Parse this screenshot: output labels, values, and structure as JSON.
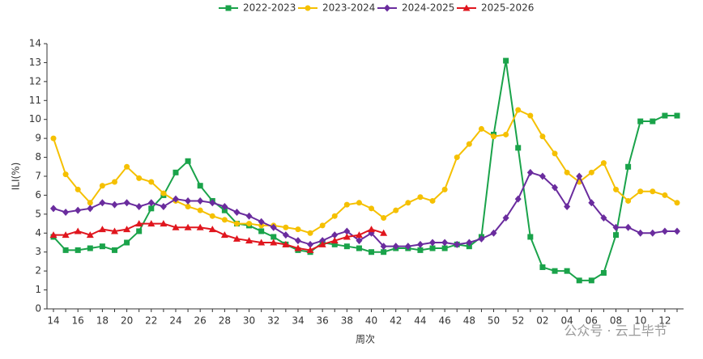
{
  "chart_data": {
    "type": "line",
    "x_label": "周次",
    "y_label": "ILI(%)",
    "categories": [
      "14",
      null,
      "16",
      null,
      "18",
      null,
      "20",
      null,
      "22",
      null,
      "24",
      null,
      "26",
      null,
      "28",
      null,
      "30",
      null,
      "32",
      null,
      "34",
      null,
      "36",
      null,
      "38",
      null,
      "40",
      null,
      "42",
      null,
      "44",
      null,
      "46",
      null,
      "48",
      null,
      "50",
      null,
      "52",
      null,
      "02",
      null,
      "04",
      null,
      "06",
      null,
      "08",
      null,
      "10",
      null,
      "12",
      null
    ],
    "ylim": [
      0,
      14
    ],
    "yticks": [
      0,
      1,
      2,
      3,
      4,
      5,
      6,
      7,
      8,
      9,
      10,
      11,
      12,
      13,
      14
    ],
    "legend": "top",
    "series": [
      {
        "name": "2022-2023",
        "color": "#1aa34a",
        "marker": "square",
        "values": [
          3.8,
          3.1,
          3.1,
          3.2,
          3.3,
          3.1,
          3.5,
          4.1,
          5.3,
          6.0,
          7.2,
          7.8,
          6.5,
          5.7,
          5.2,
          4.5,
          4.4,
          4.1,
          3.8,
          3.4,
          3.1,
          3.0,
          3.5,
          3.4,
          3.3,
          3.2,
          3.0,
          3.0,
          3.2,
          3.2,
          3.1,
          3.2,
          3.2,
          3.4,
          3.3,
          3.8,
          9.2,
          13.1,
          8.5,
          3.8,
          2.2,
          2.0,
          2.0,
          1.5,
          1.5,
          1.9,
          3.9,
          7.5,
          9.9,
          9.9,
          10.2,
          10.2
        ]
      },
      {
        "name": "2023-2024",
        "color": "#f5c000",
        "marker": "circle",
        "values": [
          9.0,
          7.1,
          6.3,
          5.6,
          6.5,
          6.7,
          7.5,
          6.9,
          6.7,
          6.1,
          5.7,
          5.4,
          5.2,
          4.9,
          4.7,
          4.5,
          4.5,
          4.4,
          4.4,
          4.3,
          4.2,
          4.0,
          4.4,
          4.9,
          5.5,
          5.6,
          5.3,
          4.8,
          5.2,
          5.6,
          5.9,
          5.7,
          6.3,
          8.0,
          8.7,
          9.5,
          9.1,
          9.2,
          10.5,
          10.2,
          9.1,
          8.2,
          7.2,
          6.7,
          7.2,
          7.7,
          6.3,
          5.7,
          6.2,
          6.2,
          6.0,
          5.6
        ]
      },
      {
        "name": "2024-2025",
        "color": "#6a2c9e",
        "marker": "diamond",
        "values": [
          5.3,
          5.1,
          5.2,
          5.3,
          5.6,
          5.5,
          5.6,
          5.4,
          5.6,
          5.4,
          5.8,
          5.7,
          5.7,
          5.6,
          5.4,
          5.1,
          4.9,
          4.6,
          4.3,
          3.9,
          3.6,
          3.4,
          3.6,
          3.9,
          4.1,
          3.6,
          4.0,
          3.3,
          3.3,
          3.3,
          3.4,
          3.5,
          3.5,
          3.4,
          3.5,
          3.7,
          4.0,
          4.8,
          5.8,
          7.2,
          7.0,
          6.4,
          5.4,
          7.0,
          5.6,
          4.8,
          4.3,
          4.3,
          4.0,
          4.0,
          4.1,
          4.1
        ]
      },
      {
        "name": "2025-2026",
        "color": "#e0161e",
        "marker": "triangle",
        "values": [
          3.9,
          3.9,
          4.1,
          3.9,
          4.2,
          4.1,
          4.2,
          4.5,
          4.5,
          4.5,
          4.3,
          4.3,
          4.3,
          4.2,
          3.9,
          3.7,
          3.6,
          3.5,
          3.5,
          3.4,
          3.2,
          3.1,
          3.4,
          3.6,
          3.8,
          3.9,
          4.2,
          4.0,
          null,
          null,
          null,
          null,
          null,
          null,
          null,
          null,
          null,
          null,
          null,
          null,
          null,
          null,
          null,
          null,
          null,
          null,
          null,
          null,
          null,
          null,
          null,
          null
        ]
      }
    ]
  },
  "watermark": "公众号 · 云上毕节"
}
